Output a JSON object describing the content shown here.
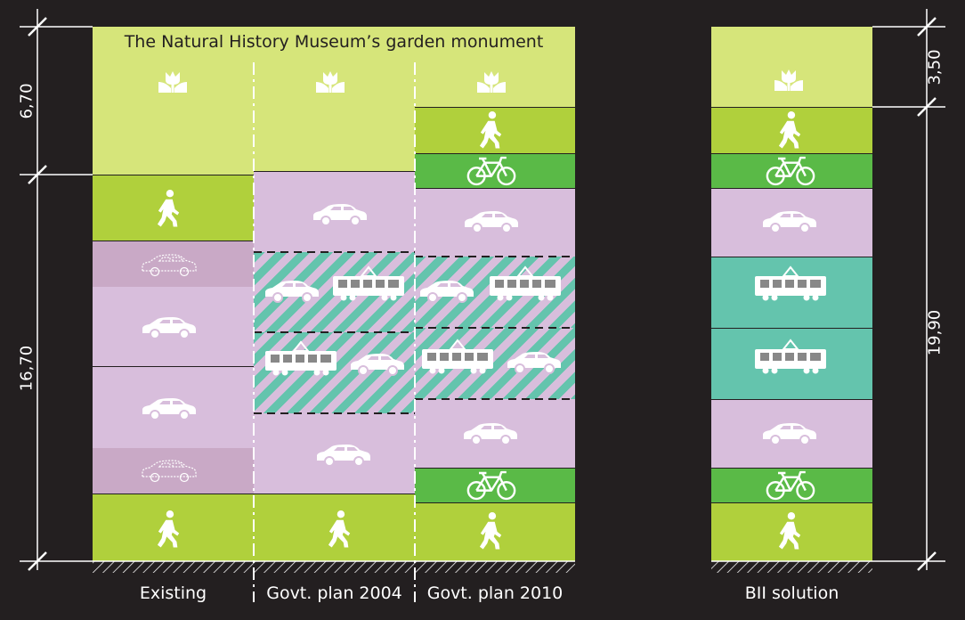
{
  "title": "The Natural History Museum’s garden monument",
  "columns": [
    {
      "label": "Existing"
    },
    {
      "label": "Govt. plan 2004"
    },
    {
      "label": "Govt. plan 2010"
    },
    {
      "label": "BII solution"
    }
  ],
  "dimensions": {
    "left_top": "6,70",
    "left_bottom": "16,70",
    "right_top": "3,50",
    "right_bottom": "19,90"
  },
  "colors": {
    "background": "#231f20",
    "garden": "#d6e57a",
    "pedestrian": "#b0d03c",
    "bicycle": "#5aba47",
    "car": "#d8bedc",
    "parking": "#c9a9c6",
    "tram": "#64c4ad"
  },
  "icons": [
    "flower-icon",
    "pedestrian-icon",
    "bicycle-icon",
    "car-icon",
    "parked-car-icon",
    "tram-icon"
  ]
}
